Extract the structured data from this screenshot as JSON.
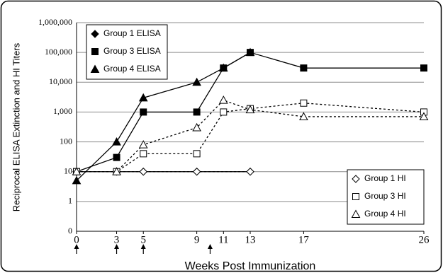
{
  "chart_data": {
    "type": "line",
    "ylabel": "Reciprocal ELISA Extinction and HI  Titers",
    "xlabel": "Weeks Post Immunization",
    "log_y": true,
    "grid": true,
    "xlim": [
      0,
      26
    ],
    "xticks": [
      0,
      3,
      5,
      9,
      11,
      13,
      17,
      26
    ],
    "ylim": [
      0.1,
      1000000
    ],
    "yticks": [
      {
        "value": 0.1,
        "label": "0"
      },
      1,
      10,
      100,
      {
        "value": 1000,
        "label": "1,000"
      },
      {
        "value": 10000,
        "label": "10,000"
      },
      {
        "value": 100000,
        "label": "100,000"
      },
      {
        "value": 1000000,
        "label": "1,000,000"
      }
    ],
    "immunization_weeks": [
      0,
      3,
      5,
      10
    ],
    "series": [
      {
        "name": "Group 1 ELISA",
        "color": "#000000",
        "marker": "diamond",
        "filled": true,
        "dashed": false,
        "legend": "upper left",
        "x": [
          0,
          3,
          5,
          9,
          13
        ],
        "values": [
          10,
          10,
          10,
          10,
          10
        ]
      },
      {
        "name": "Group 3 ELISA",
        "color": "#000000",
        "marker": "square",
        "filled": true,
        "dashed": false,
        "legend": "upper left",
        "x": [
          0,
          3,
          5,
          9,
          11,
          13,
          17,
          26
        ],
        "values": [
          10,
          30,
          1000,
          1000,
          30000,
          100000,
          30000,
          30000
        ]
      },
      {
        "name": "Group 4 ELISA",
        "color": "#000000",
        "marker": "triangle",
        "filled": true,
        "dashed": false,
        "legend": "upper left",
        "x": [
          0,
          3,
          5,
          9,
          11,
          13
        ],
        "values": [
          5,
          100,
          3000,
          10000,
          30000,
          100000
        ]
      },
      {
        "name": "Group 1 HI",
        "color": "#000000",
        "marker": "diamond",
        "filled": false,
        "dashed": true,
        "legend": "lower right",
        "x": [
          0,
          3,
          5,
          9,
          13
        ],
        "values": [
          10,
          10,
          10,
          10,
          10
        ]
      },
      {
        "name": "Group 3 HI",
        "color": "#000000",
        "marker": "square",
        "filled": false,
        "dashed": true,
        "legend": "lower right",
        "x": [
          0,
          3,
          5,
          9,
          11,
          13,
          17,
          26
        ],
        "values": [
          10,
          10,
          40,
          40,
          1000,
          1300,
          2000,
          1000
        ]
      },
      {
        "name": "Group 4 HI",
        "color": "#000000",
        "marker": "triangle",
        "filled": false,
        "dashed": true,
        "legend": "lower right",
        "x": [
          0,
          3,
          5,
          9,
          11,
          13,
          17,
          26
        ],
        "values": [
          10,
          10,
          80,
          300,
          2500,
          1200,
          700,
          700
        ]
      }
    ]
  }
}
